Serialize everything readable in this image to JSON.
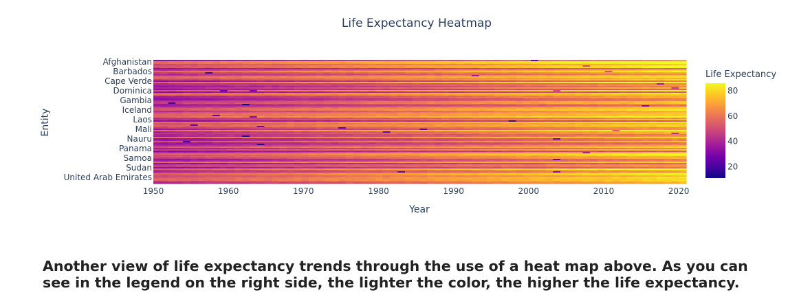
{
  "chart_data": {
    "type": "heatmap",
    "title": "Life Expectancy Heatmap",
    "xlabel": "Year",
    "ylabel": "Entity",
    "x_range": [
      1950,
      2021
    ],
    "x_ticks": [
      1950,
      1960,
      1970,
      1980,
      1990,
      2000,
      2010,
      2020
    ],
    "y_tick_labels": [
      "Afghanistan",
      "Barbados",
      "Cape Verde",
      "Dominica",
      "Gambia",
      "Iceland",
      "Laos",
      "Mali",
      "Nauru",
      "Panama",
      "Samoa",
      "Sudan",
      "United Arab Emirates"
    ],
    "colorbar": {
      "title": "Life Expectancy",
      "range": [
        11,
        86
      ],
      "ticks": [
        20,
        40,
        60,
        80
      ],
      "colors": [
        "#0d0887",
        "#46039f",
        "#7201a8",
        "#9c179e",
        "#bd3786",
        "#d8576b",
        "#ed7953",
        "#fb9f3a",
        "#fdca26",
        "#f0f921"
      ]
    },
    "approx_trend": {
      "start_year": 1950,
      "start_value": 45,
      "end_year": 2021,
      "end_value": 72
    }
  },
  "caption": "Another view of life expectancy trends through the use of a heat map above. As you can see in the legend on the right side, the lighter the color, the higher the life expectancy."
}
